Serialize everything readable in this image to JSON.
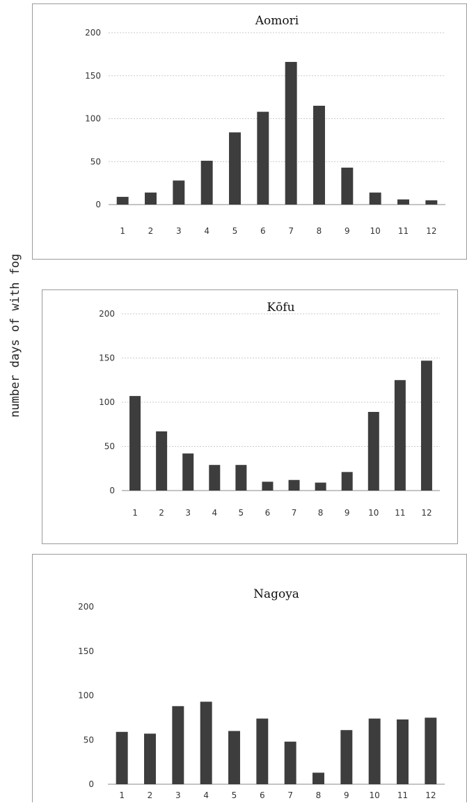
{
  "ylabel": "number days of with fog",
  "chart_data": [
    {
      "type": "bar",
      "title": "Aomori",
      "categories": [
        "1",
        "2",
        "3",
        "4",
        "5",
        "6",
        "7",
        "8",
        "9",
        "10",
        "11",
        "12"
      ],
      "values": [
        9,
        14,
        28,
        51,
        84,
        108,
        166,
        115,
        43,
        14,
        6,
        5
      ],
      "ylim": [
        0,
        200
      ],
      "yticks": [
        "0",
        "50",
        "100",
        "150",
        "200"
      ],
      "grid": true
    },
    {
      "type": "bar",
      "title": "Kōfu",
      "categories": [
        "1",
        "2",
        "3",
        "4",
        "5",
        "6",
        "7",
        "8",
        "9",
        "10",
        "11",
        "12"
      ],
      "values": [
        107,
        67,
        42,
        29,
        29,
        10,
        12,
        9,
        21,
        89,
        125,
        147
      ],
      "ylim": [
        0,
        200
      ],
      "yticks": [
        "0",
        "50",
        "100",
        "150",
        "200"
      ],
      "grid": true
    },
    {
      "type": "bar",
      "title": "Nagoya",
      "categories": [
        "1",
        "2",
        "3",
        "4",
        "5",
        "6",
        "7",
        "8",
        "9",
        "10",
        "11",
        "12"
      ],
      "values": [
        59,
        57,
        88,
        93,
        60,
        74,
        48,
        13,
        61,
        74,
        73,
        75
      ],
      "ylim": [
        0,
        200
      ],
      "yticks": [
        "0",
        "50",
        "100",
        "150",
        "200"
      ],
      "grid": false
    }
  ]
}
